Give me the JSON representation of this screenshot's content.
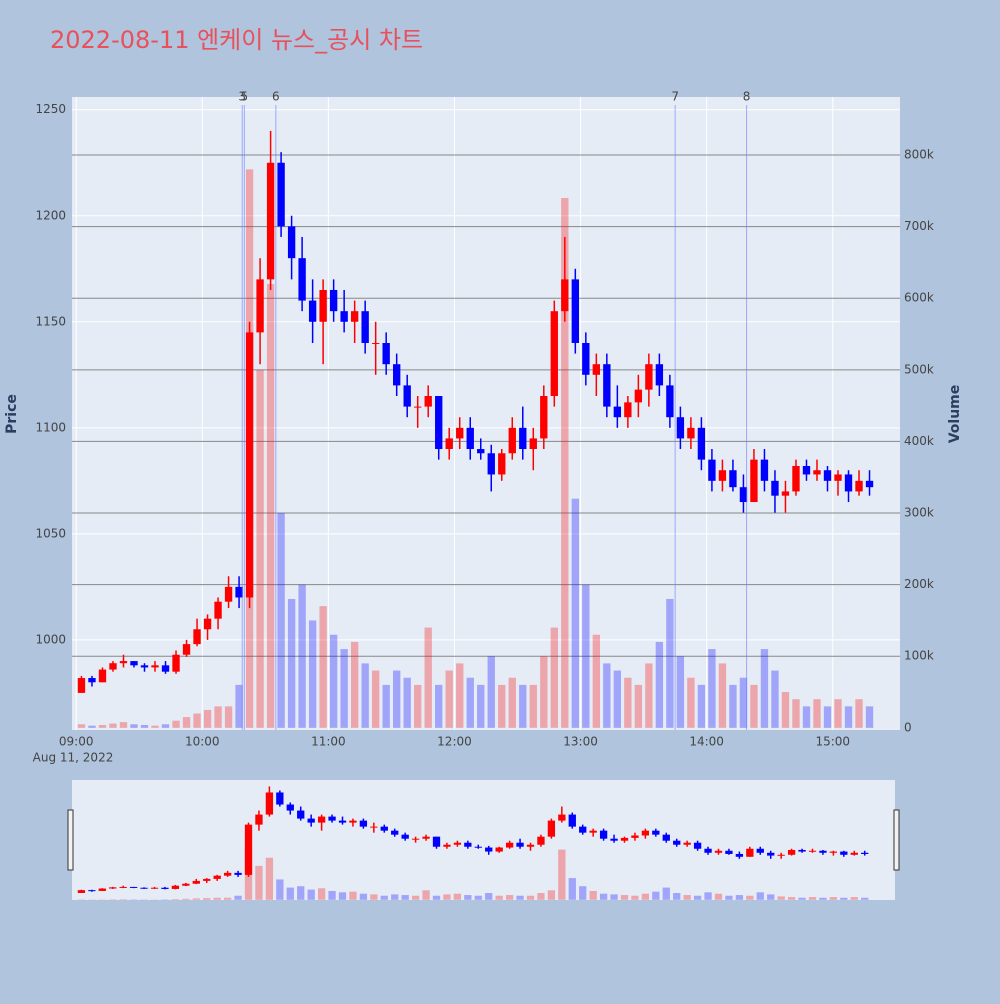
{
  "chart_data": {
    "type": "candlestick",
    "title": "2022-08-11 엔케이 뉴스_공시 차트",
    "y_title": "Price",
    "y2_title": "Volume",
    "x_date_label": "Aug 11, 2022",
    "xlim": [
      "08:58",
      "15:32"
    ],
    "xticks": [
      "09:00",
      "10:00",
      "11:00",
      "12:00",
      "13:00",
      "14:00",
      "15:00"
    ],
    "ylim": [
      957.5,
      1256
    ],
    "yticks": [
      1000,
      1050,
      1100,
      1150,
      1200,
      1250
    ],
    "y2lim": [
      -3000,
      881000
    ],
    "y2ticks": [
      0,
      {
        "value": 100000,
        "label": "100k"
      },
      {
        "value": 200000,
        "label": "200k"
      },
      {
        "value": 300000,
        "label": "300k"
      },
      {
        "value": 400000,
        "label": "400k"
      },
      {
        "value": 500000,
        "label": "500k"
      },
      {
        "value": 600000,
        "label": "600k"
      },
      {
        "value": 700000,
        "label": "700k"
      },
      {
        "value": 800000,
        "label": "800k"
      }
    ],
    "increasing_color": "#ff0000",
    "decreasing_color": "#0000ff",
    "x": [
      "09:00",
      "09:05",
      "09:10",
      "09:15",
      "09:20",
      "09:25",
      "09:30",
      "09:35",
      "09:40",
      "09:45",
      "09:50",
      "09:55",
      "10:00",
      "10:05",
      "10:10",
      "10:15",
      "10:20",
      "10:25",
      "10:30",
      "10:35",
      "10:40",
      "10:45",
      "10:50",
      "10:55",
      "11:00",
      "11:05",
      "11:10",
      "11:15",
      "11:20",
      "11:25",
      "11:30",
      "11:35",
      "11:40",
      "11:45",
      "11:50",
      "11:55",
      "12:00",
      "12:05",
      "12:10",
      "12:15",
      "12:20",
      "12:25",
      "12:30",
      "12:35",
      "12:40",
      "12:45",
      "12:50",
      "12:55",
      "13:00",
      "13:05",
      "13:10",
      "13:15",
      "13:20",
      "13:25",
      "13:30",
      "13:35",
      "13:40",
      "13:45",
      "13:50",
      "13:55",
      "14:00",
      "14:05",
      "14:10",
      "14:15",
      "14:20",
      "14:25",
      "14:30",
      "14:35",
      "14:40",
      "14:45",
      "14:50",
      "14:55",
      "15:00",
      "15:05",
      "15:10",
      "15:15"
    ],
    "open": [
      975,
      982,
      980,
      986,
      989,
      990,
      988,
      987,
      988,
      985,
      993,
      998,
      1005,
      1010,
      1018,
      1025,
      1020,
      1145,
      1170,
      1225,
      1195,
      1180,
      1160,
      1150,
      1165,
      1155,
      1150,
      1155,
      1140,
      1140,
      1130,
      1120,
      1110,
      1110,
      1115,
      1090,
      1095,
      1100,
      1090,
      1088,
      1078,
      1088,
      1100,
      1090,
      1095,
      1115,
      1155,
      1170,
      1140,
      1125,
      1130,
      1110,
      1105,
      1112,
      1118,
      1130,
      1120,
      1105,
      1095,
      1100,
      1085,
      1075,
      1080,
      1072,
      1065,
      1085,
      1075,
      1068,
      1070,
      1082,
      1078,
      1080,
      1075,
      1078,
      1070,
      1075
    ],
    "high": [
      983,
      983,
      987,
      990,
      993,
      990,
      989,
      990,
      990,
      995,
      1000,
      1010,
      1012,
      1020,
      1030,
      1030,
      1150,
      1180,
      1240,
      1230,
      1200,
      1190,
      1170,
      1170,
      1170,
      1165,
      1160,
      1160,
      1150,
      1145,
      1135,
      1125,
      1115,
      1120,
      1115,
      1100,
      1105,
      1105,
      1095,
      1092,
      1090,
      1105,
      1110,
      1100,
      1120,
      1160,
      1190,
      1175,
      1145,
      1135,
      1135,
      1120,
      1115,
      1125,
      1135,
      1135,
      1125,
      1110,
      1105,
      1105,
      1090,
      1085,
      1085,
      1078,
      1090,
      1090,
      1080,
      1075,
      1085,
      1085,
      1085,
      1082,
      1080,
      1080,
      1080,
      1080
    ],
    "low": [
      975,
      978,
      980,
      985,
      987,
      987,
      985,
      985,
      984,
      984,
      992,
      997,
      1000,
      1005,
      1015,
      1015,
      1015,
      1130,
      1165,
      1190,
      1170,
      1155,
      1140,
      1130,
      1150,
      1145,
      1140,
      1135,
      1125,
      1125,
      1115,
      1105,
      1100,
      1105,
      1085,
      1085,
      1090,
      1085,
      1085,
      1070,
      1075,
      1085,
      1085,
      1080,
      1090,
      1110,
      1150,
      1135,
      1120,
      1115,
      1105,
      1100,
      1100,
      1105,
      1110,
      1115,
      1100,
      1090,
      1090,
      1080,
      1070,
      1070,
      1070,
      1060,
      1065,
      1070,
      1060,
      1060,
      1068,
      1075,
      1075,
      1070,
      1068,
      1065,
      1068,
      1068
    ],
    "close": [
      982,
      980,
      986,
      989,
      990,
      988,
      987,
      988,
      985,
      993,
      998,
      1005,
      1010,
      1018,
      1025,
      1020,
      1145,
      1170,
      1225,
      1195,
      1180,
      1160,
      1150,
      1165,
      1155,
      1150,
      1155,
      1140,
      1140,
      1130,
      1120,
      1110,
      1110,
      1115,
      1090,
      1095,
      1100,
      1090,
      1088,
      1078,
      1088,
      1100,
      1090,
      1095,
      1115,
      1155,
      1170,
      1140,
      1125,
      1130,
      1110,
      1105,
      1112,
      1118,
      1130,
      1120,
      1105,
      1095,
      1100,
      1085,
      1075,
      1080,
      1072,
      1065,
      1085,
      1075,
      1068,
      1070,
      1082,
      1078,
      1080,
      1075,
      1078,
      1070,
      1075,
      1072
    ],
    "volume": [
      5000,
      3000,
      4000,
      6000,
      8000,
      5000,
      4000,
      3000,
      5000,
      10000,
      15000,
      20000,
      25000,
      30000,
      30000,
      60000,
      780000,
      500000,
      620000,
      300000,
      180000,
      200000,
      150000,
      170000,
      130000,
      110000,
      120000,
      90000,
      80000,
      60000,
      80000,
      70000,
      60000,
      140000,
      60000,
      80000,
      90000,
      70000,
      60000,
      100000,
      60000,
      70000,
      60000,
      60000,
      100000,
      140000,
      740000,
      320000,
      200000,
      130000,
      90000,
      80000,
      70000,
      60000,
      90000,
      120000,
      180000,
      100000,
      70000,
      60000,
      110000,
      90000,
      60000,
      70000,
      60000,
      110000,
      80000,
      50000,
      40000,
      30000,
      40000,
      30000,
      40000,
      30000,
      40000,
      30000
    ],
    "annotations": [
      {
        "x": "10:19",
        "text": "3"
      },
      {
        "x": "10:20",
        "text": "5"
      },
      {
        "x": "10:35",
        "text": "6"
      },
      {
        "x": "13:45",
        "text": "7"
      },
      {
        "x": "14:19",
        "text": "8"
      }
    ]
  }
}
